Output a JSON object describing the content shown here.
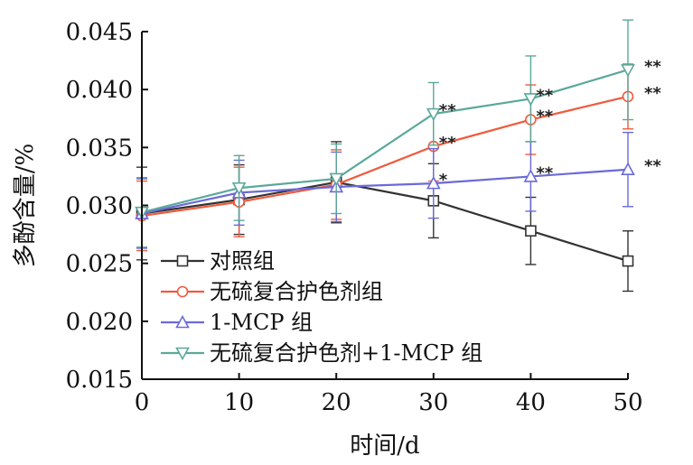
{
  "chart_data": {
    "type": "line",
    "xlabel": "时间/d",
    "ylabel": "多酚含量/%",
    "xlim": [
      0,
      50
    ],
    "ylim": [
      0.015,
      0.045
    ],
    "xticks": [
      0,
      10,
      20,
      30,
      40,
      50
    ],
    "xtick_labels": [
      "0",
      "10",
      "20",
      "30",
      "40",
      "50"
    ],
    "yticks": [
      0.015,
      0.02,
      0.025,
      0.03,
      0.035,
      0.04,
      0.045
    ],
    "ytick_labels": [
      "0.015",
      "0.020",
      "0.025",
      "0.030",
      "0.035",
      "0.040",
      "0.045"
    ],
    "grid": false,
    "legend_position": "bottom-left",
    "x": [
      0,
      10,
      20,
      30,
      40,
      50
    ],
    "series": [
      {
        "name": "对照组",
        "color": "#333333",
        "marker": "square",
        "values": [
          0.0293,
          0.0305,
          0.032,
          0.0304,
          0.0278,
          0.0252
        ],
        "errors": [
          0.004,
          0.003,
          0.0035,
          0.0032,
          0.0029,
          0.0026
        ],
        "significance": [
          "",
          "",
          "",
          "",
          "",
          ""
        ]
      },
      {
        "name": "无硫复合护色剂组",
        "color": "#f05a3c",
        "marker": "circle",
        "values": [
          0.0291,
          0.0303,
          0.0318,
          0.0351,
          0.0374,
          0.0394
        ],
        "errors": [
          0.003,
          0.003,
          0.003,
          0.003,
          0.003,
          0.0028
        ],
        "significance": [
          "",
          "",
          "",
          "**",
          "**",
          "**"
        ]
      },
      {
        "name": "1-MCP 组",
        "color": "#6a6ad8",
        "marker": "triangle-up",
        "values": [
          0.0293,
          0.0311,
          0.0316,
          0.0319,
          0.0325,
          0.0331
        ],
        "errors": [
          0.003,
          0.0028,
          0.003,
          0.003,
          0.003,
          0.0032
        ],
        "significance": [
          "",
          "",
          "",
          "*",
          "**",
          "**"
        ]
      },
      {
        "name": "无硫复合护色剂+1-MCP 组",
        "color": "#5aa89a",
        "marker": "triangle-down",
        "values": [
          0.0294,
          0.0315,
          0.0323,
          0.0379,
          0.0392,
          0.0417
        ],
        "errors": [
          0.003,
          0.0028,
          0.003,
          0.0027,
          0.0037,
          0.0043
        ],
        "significance": [
          "",
          "",
          "",
          "**",
          "**",
          "**"
        ]
      }
    ]
  }
}
